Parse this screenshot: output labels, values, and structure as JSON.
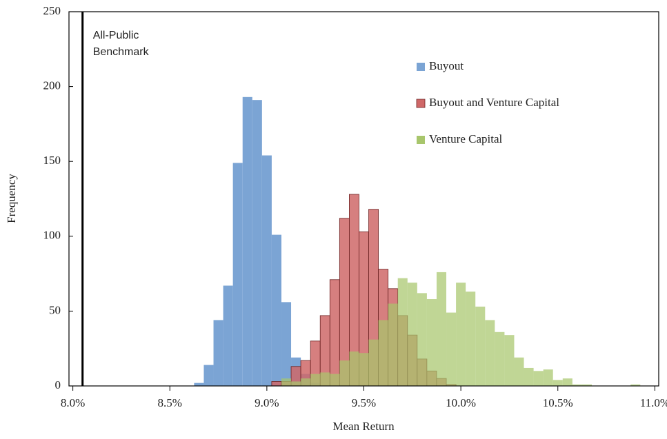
{
  "chart_data": {
    "type": "histogram",
    "x_label": "Mean Return",
    "y_label": "Frequency",
    "bins": [
      8.625,
      8.675,
      8.725,
      8.775,
      8.825,
      8.875,
      8.925,
      8.975,
      9.025,
      9.075,
      9.125,
      9.175,
      9.225,
      9.275,
      9.325,
      9.375,
      9.425,
      9.475,
      9.525,
      9.575,
      9.625,
      9.675,
      9.725,
      9.775,
      9.825,
      9.875,
      9.925,
      9.975,
      10.025,
      10.075,
      10.125,
      10.175,
      10.225,
      10.275,
      10.325,
      10.375,
      10.425,
      10.475,
      10.525,
      10.575,
      10.625,
      10.675,
      10.725,
      10.775,
      10.825,
      10.875,
      10.925
    ],
    "series": [
      {
        "name": "Buyout",
        "color": "#7ba4d4",
        "values": [
          2,
          14,
          44,
          67,
          149,
          193,
          191,
          154,
          101,
          56,
          19,
          8,
          2,
          0,
          0,
          0,
          0,
          0,
          0,
          0,
          0,
          0,
          0,
          0,
          0,
          0,
          0,
          0,
          0,
          0,
          0,
          0,
          0,
          0,
          0,
          0,
          0,
          0,
          0,
          0,
          0,
          0,
          0,
          0,
          0,
          0
        ]
      },
      {
        "name": "Buyout and Venture Capital",
        "color": "#cf6868",
        "values": [
          0,
          0,
          0,
          0,
          0,
          0,
          0,
          0,
          3,
          3,
          13,
          17,
          30,
          47,
          71,
          112,
          128,
          103,
          118,
          78,
          65,
          47,
          34,
          18,
          10,
          5,
          1,
          0,
          0,
          0,
          0,
          0,
          0,
          0,
          0,
          0,
          0,
          0,
          0,
          0,
          0,
          0,
          0,
          0,
          0,
          0
        ]
      },
      {
        "name": "Venture Capital",
        "color": "#a8c66c",
        "values": [
          0,
          0,
          0,
          0,
          0,
          0,
          0,
          0,
          0,
          5,
          3,
          5,
          8,
          9,
          8,
          17,
          23,
          22,
          31,
          44,
          55,
          72,
          69,
          62,
          58,
          76,
          49,
          69,
          63,
          53,
          44,
          36,
          34,
          19,
          12,
          10,
          11,
          4,
          5,
          1,
          1,
          0,
          0,
          0,
          0,
          1
        ]
      }
    ],
    "xlim": [
      7.98,
      11.02
    ],
    "xticks": [
      {
        "value": 8,
        "label": "8.0%"
      },
      {
        "value": 8.5,
        "label": "8.5%"
      },
      {
        "value": 9,
        "label": "9.0%"
      },
      {
        "value": 9.5,
        "label": "9.5%"
      },
      {
        "value": 10,
        "label": "10.0%"
      },
      {
        "value": 10.5,
        "label": "10.5%"
      },
      {
        "value": 11,
        "label": "11.0%"
      }
    ],
    "ylim": [
      0,
      250
    ],
    "yticks": [
      0,
      50,
      100,
      150,
      200,
      250
    ],
    "grid": false,
    "legend": "upper-right",
    "annotation": {
      "text": [
        "All-Public",
        "Benchmark"
      ],
      "x": 8.05
    }
  }
}
